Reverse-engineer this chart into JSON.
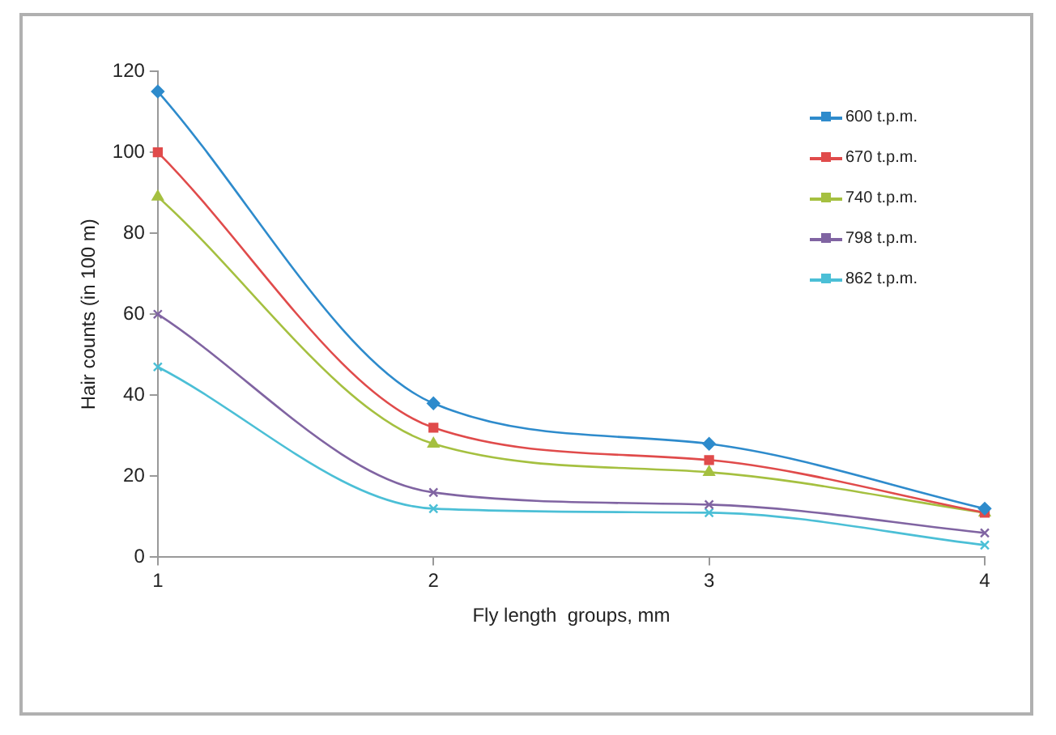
{
  "chart_data": {
    "type": "line",
    "xlabel": "Fly length  groups, mm",
    "ylabel": "Hair counts (in 100 m)",
    "x": [
      1,
      2,
      3,
      4
    ],
    "xlim": [
      1,
      4
    ],
    "xticks": [
      1,
      2,
      3,
      4
    ],
    "ylim": [
      0,
      120
    ],
    "yticks": [
      0,
      20,
      40,
      60,
      80,
      100,
      120
    ],
    "grid": false,
    "legend": "top right",
    "line_style": "solid",
    "series": [
      {
        "name": "600 t.p.m.",
        "color": "#2e8bcc",
        "marker": "diamond",
        "values": [
          115,
          38,
          28,
          12
        ]
      },
      {
        "name": "670 t.p.m.",
        "color": "#e04b4b",
        "marker": "square",
        "values": [
          100,
          32,
          24,
          11
        ]
      },
      {
        "name": "740 t.p.m.",
        "color": "#a5c040",
        "marker": "triangle",
        "values": [
          89,
          28,
          21,
          11
        ]
      },
      {
        "name": "798 t.p.m.",
        "color": "#8064a2",
        "marker": "cross",
        "values": [
          60,
          16,
          13,
          6
        ]
      },
      {
        "name": "862 t.p.m.",
        "color": "#4bbfd6",
        "marker": "cross",
        "values": [
          47,
          12,
          11,
          3
        ]
      }
    ]
  }
}
